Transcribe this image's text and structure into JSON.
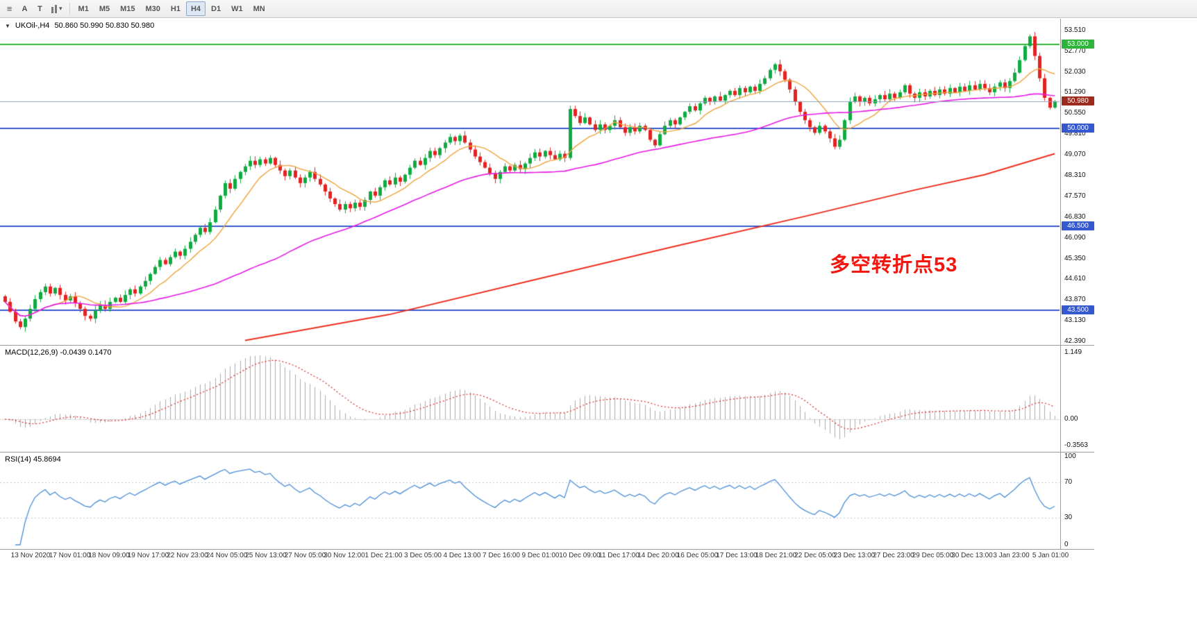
{
  "toolbar": {
    "icons": {
      "menu": "≡",
      "caret": "▾"
    },
    "tools": [
      {
        "label": "A"
      },
      {
        "label": "T"
      }
    ],
    "timeframes": [
      {
        "label": "M1",
        "active": false
      },
      {
        "label": "M5",
        "active": false
      },
      {
        "label": "M15",
        "active": false
      },
      {
        "label": "M30",
        "active": false
      },
      {
        "label": "H1",
        "active": false
      },
      {
        "label": "H4",
        "active": true
      },
      {
        "label": "D1",
        "active": false
      },
      {
        "label": "W1",
        "active": false
      },
      {
        "label": "MN",
        "active": false
      }
    ]
  },
  "chart": {
    "menu_arrow": "▼",
    "title": "UKOil-,H4",
    "ohlc": "50.860 50.990 50.830 50.980",
    "annotation": {
      "text": "多空转折点53",
      "color": "#f3160f"
    },
    "axis_labels": [
      "53.510",
      "52.770",
      "52.030",
      "51.290",
      "50.550",
      "49.810",
      "49.070",
      "48.310",
      "47.570",
      "46.830",
      "46.090",
      "45.350",
      "44.610",
      "43.870",
      "43.130",
      "42.390"
    ],
    "axis_values": [
      53.51,
      52.77,
      52.03,
      51.29,
      50.55,
      49.81,
      49.07,
      48.31,
      47.57,
      46.83,
      46.09,
      45.35,
      44.61,
      43.87,
      43.13,
      42.39
    ],
    "badges": [
      {
        "label": "53.000",
        "value": 53.0,
        "color": "#2eb43a",
        "line": "#2eb43a",
        "lwidth": 2,
        "current": false
      },
      {
        "label": "50.980",
        "value": 50.98,
        "color": "#9c2b1e",
        "line": "#8fa3b8",
        "lwidth": 1,
        "current": true
      },
      {
        "label": "50.000",
        "value": 50.0,
        "color": "#3558cf",
        "line": "#3558cf",
        "lwidth": 2,
        "current": false
      },
      {
        "label": "46.500",
        "value": 46.5,
        "color": "#3558cf",
        "line": "#3558cf",
        "lwidth": 2,
        "current": false
      },
      {
        "label": "43.500",
        "value": 43.5,
        "color": "#3558cf",
        "line": "#3558cf",
        "lwidth": 2,
        "current": false
      }
    ]
  },
  "macd": {
    "label": "MACD(12,26,9) -0.0439 0.1470",
    "axis": [
      "1.149",
      "0.00",
      "-0.3563"
    ]
  },
  "rsi": {
    "label": "RSI(14) 45.8694",
    "axis": [
      "100",
      "70",
      "30",
      "0"
    ],
    "levels": [
      70,
      30
    ]
  },
  "time_axis": [
    "13 Nov 2020",
    "17 Nov 01:00",
    "18 Nov 09:00",
    "19 Nov 17:00",
    "22 Nov 23:00",
    "24 Nov 05:00",
    "25 Nov 13:00",
    "27 Nov 05:00",
    "30 Nov 12:00",
    "1 Dec 21:00",
    "3 Dec 05:00",
    "4 Dec 13:00",
    "7 Dec 16:00",
    "9 Dec 01:00",
    "10 Dec 09:00",
    "11 Dec 17:00",
    "14 Dec 20:00",
    "16 Dec 05:00",
    "17 Dec 13:00",
    "18 Dec 21:00",
    "22 Dec 05:00",
    "23 Dec 13:00",
    "27 Dec 23:00",
    "29 Dec 05:00",
    "30 Dec 13:00",
    "3 Jan 23:00",
    "5 Jan 01:00"
  ],
  "chart_data": {
    "type": "candlestick",
    "symbol": "UKOil-",
    "timeframe": "H4",
    "current_price": 50.98,
    "ylim": [
      42.39,
      53.51
    ],
    "price_range": [
      42.26,
      53.93
    ],
    "first_open": 44.0,
    "closes": [
      43.8,
      43.45,
      43.1,
      42.9,
      43.2,
      43.55,
      43.9,
      44.15,
      44.35,
      44.1,
      44.3,
      44.05,
      43.85,
      44.0,
      43.75,
      43.55,
      43.3,
      43.2,
      43.5,
      43.7,
      43.55,
      43.8,
      43.95,
      43.8,
      44.05,
      44.25,
      44.1,
      44.35,
      44.55,
      44.8,
      45.05,
      45.3,
      45.15,
      45.4,
      45.6,
      45.45,
      45.7,
      45.95,
      46.2,
      46.45,
      46.3,
      46.65,
      47.1,
      47.6,
      48.05,
      47.85,
      48.2,
      48.45,
      48.65,
      48.85,
      48.7,
      48.9,
      48.75,
      48.95,
      48.7,
      48.5,
      48.3,
      48.5,
      48.25,
      48.05,
      48.25,
      48.45,
      48.2,
      48.0,
      47.75,
      47.5,
      47.3,
      47.1,
      47.3,
      47.15,
      47.35,
      47.2,
      47.45,
      47.75,
      47.6,
      47.9,
      48.15,
      48.0,
      48.25,
      48.1,
      48.35,
      48.6,
      48.85,
      48.7,
      48.95,
      49.2,
      49.05,
      49.3,
      49.5,
      49.7,
      49.55,
      49.75,
      49.5,
      49.25,
      49.0,
      48.8,
      48.6,
      48.4,
      48.2,
      48.45,
      48.65,
      48.5,
      48.7,
      48.55,
      48.75,
      48.95,
      49.15,
      49.0,
      49.2,
      49.05,
      48.9,
      49.1,
      48.95,
      50.7,
      50.45,
      50.2,
      50.4,
      50.15,
      49.95,
      50.15,
      49.95,
      50.1,
      50.3,
      50.05,
      49.85,
      50.05,
      49.9,
      50.1,
      49.95,
      49.6,
      49.4,
      49.8,
      50.1,
      50.3,
      50.15,
      50.4,
      50.6,
      50.8,
      50.65,
      50.9,
      51.1,
      50.95,
      51.15,
      51.0,
      51.2,
      51.35,
      51.2,
      51.45,
      51.3,
      51.5,
      51.35,
      51.6,
      51.8,
      52.1,
      52.3,
      52.05,
      51.75,
      51.4,
      50.95,
      50.6,
      50.3,
      50.05,
      49.85,
      50.1,
      49.9,
      49.65,
      49.35,
      49.6,
      50.3,
      50.95,
      51.15,
      50.95,
      51.1,
      50.9,
      51.05,
      51.2,
      51.05,
      51.25,
      51.1,
      51.3,
      51.55,
      51.25,
      51.1,
      51.3,
      51.15,
      51.35,
      51.2,
      51.4,
      51.25,
      51.45,
      51.3,
      51.5,
      51.35,
      51.55,
      51.4,
      51.6,
      51.45,
      51.3,
      51.5,
      51.65,
      51.45,
      51.7,
      52.0,
      52.45,
      52.95,
      53.3,
      52.6,
      51.8,
      51.1,
      50.75,
      50.98
    ],
    "ma_fast_period": 10,
    "ma_mid_period": 55,
    "ma_slow_waypoints": [
      [
        48,
        42.42
      ],
      [
        77,
        43.35
      ],
      [
        105,
        44.55
      ],
      [
        133,
        45.75
      ],
      [
        161,
        46.9
      ],
      [
        182,
        47.8
      ],
      [
        196,
        48.35
      ],
      [
        210,
        49.1
      ]
    ],
    "macd_params": [
      12,
      26,
      9
    ],
    "rsi_period": 14,
    "colors": {
      "bull": "#0fab40",
      "bear": "#e32222",
      "ma_fast": "#eea23c",
      "ma_mid": "#e61ae6",
      "ma_slow": "#ef2e1f",
      "macd_hist": "#ababab",
      "macd_signal": "#e02020",
      "rsi": "#4b8ed6",
      "rsi_level": "#b3c6dc"
    }
  }
}
